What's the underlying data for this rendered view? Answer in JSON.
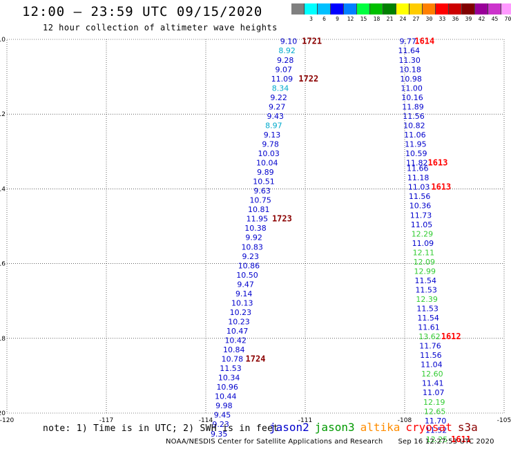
{
  "header": {
    "title": "12:00 – 23:59 UTC 09/15/2020",
    "subtitle": "12 hour collection of altimeter wave heights"
  },
  "colorbar": {
    "colors": [
      "#808080",
      "#00ffff",
      "#00c0ff",
      "#0000ff",
      "#0080ff",
      "#00ff40",
      "#00c000",
      "#008000",
      "#ffff00",
      "#ffcc00",
      "#ff8000",
      "#ff0000",
      "#cc0000",
      "#800000",
      "#990099",
      "#cc33cc",
      "#ff99ff",
      "#000000"
    ],
    "labels": [
      "",
      "3",
      "6",
      "9",
      "12",
      "15",
      "18",
      "21",
      "24",
      "27",
      "30",
      "33",
      "36",
      "39",
      "42",
      "45",
      "70"
    ],
    "units": "(ft)"
  },
  "chart_data": {
    "type": "scatter",
    "xlim": [
      -120,
      -105
    ],
    "ylim": [
      -20,
      -10
    ],
    "x_ticks": [
      "-120",
      "-117",
      "-114",
      "-111",
      "-108",
      "-105"
    ],
    "y_ticks": [
      "-10",
      "-12",
      "-14",
      "-16",
      "-18",
      "-20"
    ],
    "label_color_legend": {
      "blue": "jason2",
      "green": "jason3",
      "orange": "altika",
      "red": "cryosat",
      "darkred": "s3a"
    },
    "tracks": [
      {
        "satellite": "jason2",
        "heights": [
          {
            "lon": -111.5,
            "lat": -10.05,
            "swh": "9.10",
            "color": "#0000cc"
          },
          {
            "lon": -111.55,
            "lat": -10.3,
            "swh": "8.92",
            "color": "#00aacc"
          },
          {
            "lon": -111.6,
            "lat": -10.55,
            "swh": "9.28",
            "color": "#0000cc"
          },
          {
            "lon": -111.65,
            "lat": -10.8,
            "swh": "9.07",
            "color": "#0000cc"
          },
          {
            "lon": -111.7,
            "lat": -11.05,
            "swh": "11.09",
            "color": "#0000cc"
          },
          {
            "lon": -111.75,
            "lat": -11.3,
            "swh": "8.34",
            "color": "#00aacc"
          },
          {
            "lon": -111.8,
            "lat": -11.55,
            "swh": "9.22",
            "color": "#0000cc"
          },
          {
            "lon": -111.85,
            "lat": -11.8,
            "swh": "9.27",
            "color": "#0000cc"
          },
          {
            "lon": -111.9,
            "lat": -12.05,
            "swh": "9.43",
            "color": "#0000cc"
          },
          {
            "lon": -111.95,
            "lat": -12.3,
            "swh": "8.97",
            "color": "#00aacc"
          },
          {
            "lon": -112.0,
            "lat": -12.55,
            "swh": "9.13",
            "color": "#0000cc"
          },
          {
            "lon": -112.05,
            "lat": -12.8,
            "swh": "9.78",
            "color": "#0000cc"
          },
          {
            "lon": -112.1,
            "lat": -13.05,
            "swh": "10.03",
            "color": "#0000cc"
          },
          {
            "lon": -112.15,
            "lat": -13.3,
            "swh": "10.04",
            "color": "#0000cc"
          },
          {
            "lon": -112.2,
            "lat": -13.55,
            "swh": "9.89",
            "color": "#0000cc"
          },
          {
            "lon": -112.25,
            "lat": -13.8,
            "swh": "10.51",
            "color": "#0000cc"
          },
          {
            "lon": -112.3,
            "lat": -14.05,
            "swh": "9.63",
            "color": "#0000cc"
          },
          {
            "lon": -112.35,
            "lat": -14.3,
            "swh": "10.75",
            "color": "#0000cc"
          },
          {
            "lon": -112.4,
            "lat": -14.55,
            "swh": "10.81",
            "color": "#0000cc"
          },
          {
            "lon": -112.45,
            "lat": -14.8,
            "swh": "11.95",
            "color": "#0000cc"
          },
          {
            "lon": -112.5,
            "lat": -15.05,
            "swh": "10.38",
            "color": "#0000cc"
          },
          {
            "lon": -112.55,
            "lat": -15.3,
            "swh": "9.92",
            "color": "#0000cc"
          },
          {
            "lon": -112.6,
            "lat": -15.55,
            "swh": "10.83",
            "color": "#0000cc"
          },
          {
            "lon": -112.65,
            "lat": -15.8,
            "swh": "9.23",
            "color": "#0000cc"
          },
          {
            "lon": -112.7,
            "lat": -16.05,
            "swh": "10.86",
            "color": "#0000cc"
          },
          {
            "lon": -112.75,
            "lat": -16.3,
            "swh": "10.50",
            "color": "#0000cc"
          },
          {
            "lon": -112.8,
            "lat": -16.55,
            "swh": "9.47",
            "color": "#0000cc"
          },
          {
            "lon": -112.85,
            "lat": -16.8,
            "swh": "9.14",
            "color": "#0000cc"
          },
          {
            "lon": -112.9,
            "lat": -17.05,
            "swh": "10.13",
            "color": "#0000cc"
          },
          {
            "lon": -112.95,
            "lat": -17.3,
            "swh": "10.23",
            "color": "#0000cc"
          },
          {
            "lon": -113.0,
            "lat": -17.55,
            "swh": "10.23",
            "color": "#0000cc"
          },
          {
            "lon": -113.05,
            "lat": -17.8,
            "swh": "10.47",
            "color": "#0000cc"
          },
          {
            "lon": -113.1,
            "lat": -18.05,
            "swh": "10.42",
            "color": "#0000cc"
          },
          {
            "lon": -113.15,
            "lat": -18.3,
            "swh": "10.84",
            "color": "#0000cc"
          },
          {
            "lon": -113.2,
            "lat": -18.55,
            "swh": "10.78",
            "color": "#0000cc"
          },
          {
            "lon": -113.25,
            "lat": -18.8,
            "swh": "11.53",
            "color": "#0000cc"
          },
          {
            "lon": -113.3,
            "lat": -19.05,
            "swh": "10.34",
            "color": "#0000cc"
          },
          {
            "lon": -113.35,
            "lat": -19.3,
            "swh": "10.96",
            "color": "#0000cc"
          },
          {
            "lon": -113.4,
            "lat": -19.55,
            "swh": "10.44",
            "color": "#0000cc"
          },
          {
            "lon": -113.45,
            "lat": -19.8,
            "swh": "9.98",
            "color": "#0000cc"
          },
          {
            "lon": -113.5,
            "lat": -20.05,
            "swh": "9.45",
            "color": "#0000cc"
          },
          {
            "lon": -113.55,
            "lat": -20.3,
            "swh": "9.23",
            "color": "#0000cc"
          },
          {
            "lon": -113.6,
            "lat": -20.55,
            "swh": "9.35",
            "color": "#0000cc"
          }
        ],
        "time_labels": [
          {
            "lon": -110.8,
            "lat": -10.05,
            "text": "1721",
            "color": "#8b0000"
          },
          {
            "lon": -110.9,
            "lat": -11.05,
            "text": "1722",
            "color": "#8b0000"
          },
          {
            "lon": -111.7,
            "lat": -14.8,
            "text": "1723",
            "color": "#8b0000"
          },
          {
            "lon": -112.5,
            "lat": -18.55,
            "text": "1724",
            "color": "#8b0000"
          }
        ]
      },
      {
        "satellite": "cryosat",
        "heights": [
          {
            "lon": -107.9,
            "lat": -10.05,
            "swh": "9.77",
            "color": "#0000cc"
          },
          {
            "lon": -107.87,
            "lat": -10.3,
            "swh": "11.64",
            "color": "#0000cc"
          },
          {
            "lon": -107.85,
            "lat": -10.55,
            "swh": "11.30",
            "color": "#0000cc"
          },
          {
            "lon": -107.83,
            "lat": -10.8,
            "swh": "10.18",
            "color": "#0000cc"
          },
          {
            "lon": -107.81,
            "lat": -11.05,
            "swh": "10.98",
            "color": "#0000cc"
          },
          {
            "lon": -107.79,
            "lat": -11.3,
            "swh": "11.00",
            "color": "#0000cc"
          },
          {
            "lon": -107.77,
            "lat": -11.55,
            "swh": "10.16",
            "color": "#0000cc"
          },
          {
            "lon": -107.75,
            "lat": -11.8,
            "swh": "11.89",
            "color": "#0000cc"
          },
          {
            "lon": -107.73,
            "lat": -12.05,
            "swh": "11.56",
            "color": "#0000cc"
          },
          {
            "lon": -107.71,
            "lat": -12.3,
            "swh": "10.82",
            "color": "#0000cc"
          },
          {
            "lon": -107.69,
            "lat": -12.55,
            "swh": "11.06",
            "color": "#0000cc"
          },
          {
            "lon": -107.67,
            "lat": -12.8,
            "swh": "11.95",
            "color": "#0000cc"
          },
          {
            "lon": -107.65,
            "lat": -13.05,
            "swh": "10.59",
            "color": "#0000cc"
          },
          {
            "lon": -107.63,
            "lat": -13.3,
            "swh": "11.82",
            "color": "#0000cc"
          },
          {
            "lon": -107.61,
            "lat": -13.45,
            "swh": "11.66",
            "color": "#0000cc"
          },
          {
            "lon": -107.59,
            "lat": -13.7,
            "swh": "11.18",
            "color": "#0000cc"
          },
          {
            "lon": -107.57,
            "lat": -13.95,
            "swh": "11.03",
            "color": "#0000cc"
          },
          {
            "lon": -107.55,
            "lat": -14.2,
            "swh": "11.56",
            "color": "#0000cc"
          },
          {
            "lon": -107.53,
            "lat": -14.45,
            "swh": "10.36",
            "color": "#0000cc"
          },
          {
            "lon": -107.51,
            "lat": -14.7,
            "swh": "11.73",
            "color": "#0000cc"
          },
          {
            "lon": -107.49,
            "lat": -14.95,
            "swh": "11.05",
            "color": "#0000cc"
          },
          {
            "lon": -107.47,
            "lat": -15.2,
            "swh": "12.29",
            "color": "#33cc33"
          },
          {
            "lon": -107.45,
            "lat": -15.45,
            "swh": "11.09",
            "color": "#0000cc"
          },
          {
            "lon": -107.43,
            "lat": -15.7,
            "swh": "12.11",
            "color": "#33cc33"
          },
          {
            "lon": -107.41,
            "lat": -15.95,
            "swh": "12.09",
            "color": "#33cc33"
          },
          {
            "lon": -107.39,
            "lat": -16.2,
            "swh": "12.99",
            "color": "#33cc33"
          },
          {
            "lon": -107.37,
            "lat": -16.45,
            "swh": "11.54",
            "color": "#0000cc"
          },
          {
            "lon": -107.35,
            "lat": -16.7,
            "swh": "11.53",
            "color": "#0000cc"
          },
          {
            "lon": -107.33,
            "lat": -16.95,
            "swh": "12.39",
            "color": "#33cc33"
          },
          {
            "lon": -107.31,
            "lat": -17.2,
            "swh": "11.53",
            "color": "#0000cc"
          },
          {
            "lon": -107.29,
            "lat": -17.45,
            "swh": "11.54",
            "color": "#0000cc"
          },
          {
            "lon": -107.27,
            "lat": -17.7,
            "swh": "11.61",
            "color": "#0000cc"
          },
          {
            "lon": -107.25,
            "lat": -17.95,
            "swh": "13.62",
            "color": "#33cc33"
          },
          {
            "lon": -107.23,
            "lat": -18.2,
            "swh": "11.76",
            "color": "#0000cc"
          },
          {
            "lon": -107.21,
            "lat": -18.45,
            "swh": "11.56",
            "color": "#0000cc"
          },
          {
            "lon": -107.19,
            "lat": -18.7,
            "swh": "11.04",
            "color": "#0000cc"
          },
          {
            "lon": -107.17,
            "lat": -18.95,
            "swh": "12.60",
            "color": "#33cc33"
          },
          {
            "lon": -107.15,
            "lat": -19.2,
            "swh": "11.41",
            "color": "#0000cc"
          },
          {
            "lon": -107.13,
            "lat": -19.45,
            "swh": "11.07",
            "color": "#0000cc"
          },
          {
            "lon": -107.11,
            "lat": -19.7,
            "swh": "12.19",
            "color": "#33cc33"
          },
          {
            "lon": -107.09,
            "lat": -19.95,
            "swh": "12.65",
            "color": "#33cc33"
          },
          {
            "lon": -107.07,
            "lat": -20.2,
            "swh": "11.70",
            "color": "#0000cc"
          },
          {
            "lon": -107.05,
            "lat": -20.45,
            "swh": "11.52",
            "color": "#0000cc"
          },
          {
            "lon": -107.03,
            "lat": -20.7,
            "swh": "12.25",
            "color": "#33cc33"
          }
        ],
        "time_labels": [
          {
            "lon": -107.4,
            "lat": -10.05,
            "text": "1614",
            "color": "#ff0000"
          },
          {
            "lon": -107.0,
            "lat": -13.3,
            "swh_ref": "",
            "text": "1613",
            "color": "#ff0000"
          },
          {
            "lon": -106.9,
            "lat": -13.95,
            "text": "1613",
            "color": "#ff0000"
          },
          {
            "lon": -106.6,
            "lat": -17.95,
            "text": "1612",
            "color": "#ff0000"
          },
          {
            "lon": -106.3,
            "lat": -20.7,
            "text": "1611",
            "color": "#ff0000"
          }
        ]
      }
    ]
  },
  "note": "note: 1) Time is in UTC; 2) SWH is in feet",
  "legend": [
    {
      "label": "jason2",
      "color": "#0000cc"
    },
    {
      "label": "jason3",
      "color": "#009900"
    },
    {
      "label": "altika",
      "color": "#ff8c00"
    },
    {
      "label": "cryosat",
      "color": "#ff0000"
    },
    {
      "label": "s3a",
      "color": "#8b0000"
    }
  ],
  "footer": {
    "credit": "NOAA/NESDIS Center for Satellite Applications and Research",
    "timestamp": "Sep 16 12:27:53 UTC 2020"
  }
}
